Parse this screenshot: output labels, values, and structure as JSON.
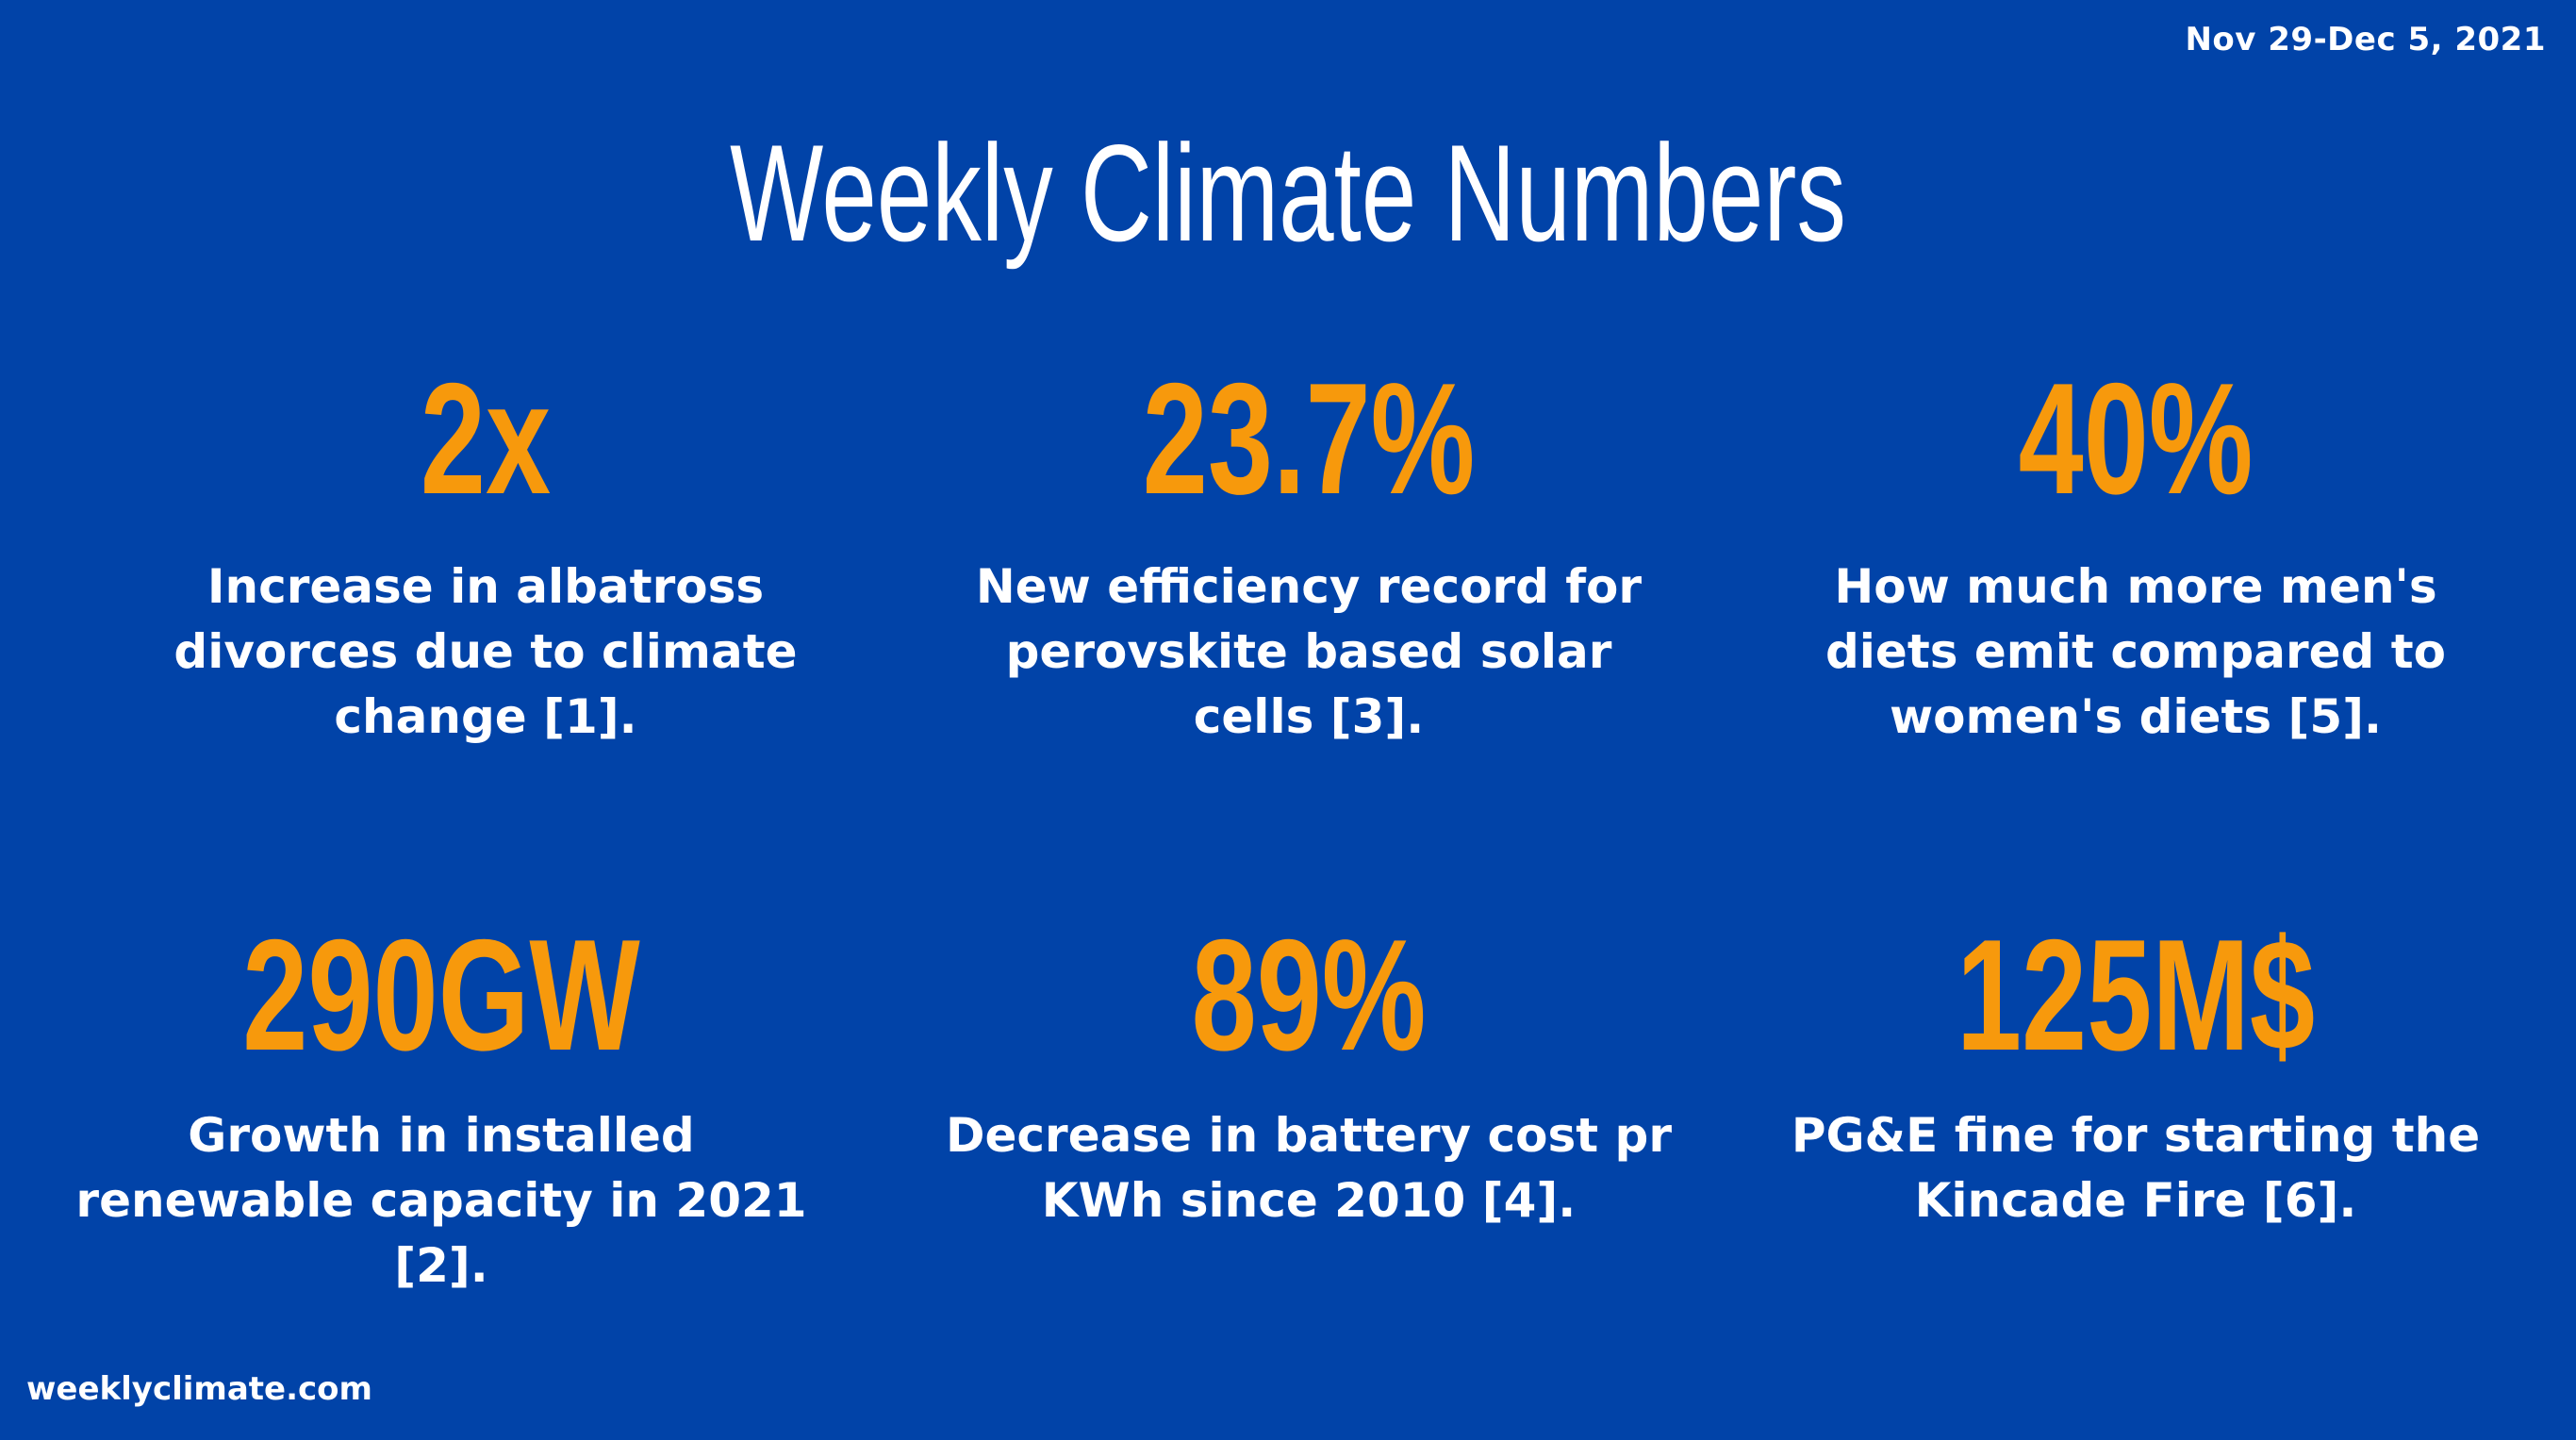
{
  "header": {
    "date_range": "Nov 29-Dec 5, 2021",
    "title": "Weekly Climate Numbers"
  },
  "stats": [
    {
      "value": "2x",
      "description": "Increase in albatross divorces due to climate change [1]."
    },
    {
      "value": "23.7%",
      "description": "New efficiency record for perovskite based solar cells [3]."
    },
    {
      "value": "40%",
      "description": "How much more men's diets emit compared to women's diets [5]."
    },
    {
      "value": "290GW",
      "description": "Growth in installed renewable capacity in 2021 [2]."
    },
    {
      "value": "89%",
      "description": "Decrease in battery cost pr KWh since 2010 [4]."
    },
    {
      "value": "125M$",
      "description": "PG&E fine for starting the Kincade Fire [6]."
    }
  ],
  "footer": {
    "website": "weeklyclimate.com"
  },
  "colors": {
    "background": "#0143a8",
    "accent": "#f7990c",
    "text": "#ffffff"
  }
}
